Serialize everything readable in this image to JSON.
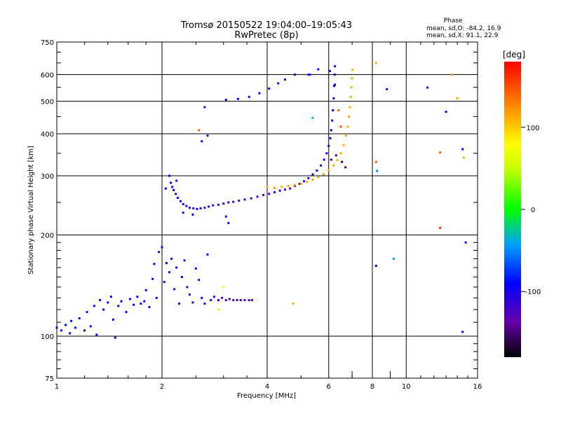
{
  "chart_data": {
    "type": "scatter",
    "title": "Tromsø 20150522 19:04:00–19:05:43",
    "subtitle": "RwPretec (8p)",
    "xlabel": "Frequency [MHz]",
    "ylabel": "Stationary phase Virtual Height [km]",
    "x_scale": "log",
    "y_scale": "log",
    "xlim": [
      1,
      16
    ],
    "ylim": [
      75,
      750
    ],
    "x_ticks": [
      1,
      2,
      4,
      6,
      8,
      10,
      16
    ],
    "x_tick_labels": [
      "1",
      "2",
      "4",
      "6",
      "8",
      "10",
      "16"
    ],
    "y_ticks": [
      75,
      100,
      200,
      300,
      400,
      500,
      600,
      750
    ],
    "y_tick_labels": [
      "75",
      "100",
      "200",
      "300",
      "400",
      "500",
      "600",
      "750"
    ],
    "grid": true,
    "phase_info": {
      "title": "Phase",
      "line1": "mean, sd,O: -84.2, 16.9",
      "line2": "mean, sd,X:  91.1, 22.9"
    },
    "colorbar": {
      "label": "[deg]",
      "range": [
        -180,
        180
      ],
      "ticks": [
        100,
        0,
        -100
      ],
      "tick_labels": [
        "100",
        "0",
        "-100"
      ]
    },
    "series": [
      {
        "points": [
          [
            1.0,
            106,
            -100
          ],
          [
            1.03,
            104,
            -95
          ],
          [
            1.06,
            108,
            -90
          ],
          [
            1.09,
            102,
            -100
          ],
          [
            1.1,
            111,
            -90
          ],
          [
            1.13,
            106,
            -95
          ],
          [
            1.16,
            113,
            -90
          ],
          [
            1.2,
            104,
            -100
          ],
          [
            1.22,
            118,
            -85
          ],
          [
            1.25,
            107,
            -95
          ],
          [
            1.28,
            123,
            -90
          ],
          [
            1.3,
            101,
            -100
          ],
          [
            1.33,
            128,
            -90
          ],
          [
            1.36,
            120,
            -95
          ],
          [
            1.4,
            126,
            -95
          ],
          [
            1.43,
            131,
            -90
          ],
          [
            1.45,
            112,
            -95
          ],
          [
            1.47,
            99,
            -105
          ],
          [
            1.5,
            123,
            -95
          ],
          [
            1.53,
            127,
            -90
          ],
          [
            1.58,
            118,
            -95
          ],
          [
            1.62,
            129,
            -90
          ],
          [
            1.66,
            124,
            -95
          ],
          [
            1.7,
            131,
            -90
          ],
          [
            1.74,
            125,
            -95
          ],
          [
            1.78,
            127,
            -90
          ],
          [
            1.8,
            137,
            -100
          ],
          [
            1.84,
            122,
            -95
          ],
          [
            1.88,
            148,
            -95
          ],
          [
            1.9,
            164,
            -95
          ],
          [
            1.93,
            130,
            -90
          ],
          [
            1.96,
            178,
            -100
          ],
          [
            2.0,
            184,
            -95
          ],
          [
            2.03,
            145,
            -100
          ],
          [
            2.06,
            165,
            -90
          ],
          [
            2.1,
            155,
            -100
          ],
          [
            2.13,
            170,
            -95
          ],
          [
            2.17,
            138,
            -100
          ],
          [
            2.2,
            160,
            -95
          ],
          [
            2.24,
            125,
            -105
          ],
          [
            2.28,
            150,
            -100
          ],
          [
            2.32,
            168,
            -95
          ],
          [
            2.36,
            140,
            -105
          ],
          [
            2.4,
            133,
            -100
          ],
          [
            2.45,
            126,
            -100
          ],
          [
            2.5,
            159,
            -95
          ],
          [
            2.55,
            147,
            -100
          ],
          [
            2.6,
            130,
            -105
          ],
          [
            2.65,
            125,
            -100
          ],
          [
            2.7,
            175,
            -95
          ],
          [
            2.76,
            128,
            -110
          ],
          [
            2.82,
            131,
            -115
          ],
          [
            2.9,
            128,
            -120
          ],
          [
            2.97,
            130,
            -125
          ],
          [
            3.05,
            128,
            -125
          ],
          [
            3.12,
            129,
            -120
          ],
          [
            3.2,
            128,
            -125
          ],
          [
            3.28,
            128,
            -120
          ],
          [
            3.36,
            128,
            -125
          ],
          [
            3.45,
            128,
            -125
          ],
          [
            3.55,
            128,
            -120
          ],
          [
            3.62,
            128,
            -125
          ]
        ]
      },
      {
        "points": [
          [
            2.12,
            286,
            -90
          ],
          [
            2.14,
            278,
            -95
          ],
          [
            2.16,
            272,
            -95
          ],
          [
            2.19,
            265,
            -100
          ],
          [
            2.22,
            258,
            -95
          ],
          [
            2.26,
            252,
            -100
          ],
          [
            2.3,
            247,
            -100
          ],
          [
            2.35,
            244,
            -105
          ],
          [
            2.4,
            241,
            -105
          ],
          [
            2.46,
            240,
            -110
          ],
          [
            2.52,
            239,
            -110
          ],
          [
            2.58,
            240,
            -110
          ],
          [
            2.65,
            241,
            -110
          ],
          [
            2.72,
            243,
            -110
          ],
          [
            2.8,
            245,
            -110
          ],
          [
            2.9,
            246,
            -115
          ],
          [
            3.0,
            248,
            -115
          ],
          [
            3.1,
            250,
            -115
          ],
          [
            3.2,
            251,
            -115
          ],
          [
            3.32,
            253,
            -120
          ],
          [
            3.45,
            255,
            -120
          ],
          [
            3.6,
            257,
            -120
          ],
          [
            3.75,
            260,
            -125
          ],
          [
            3.9,
            263,
            -125
          ],
          [
            4.05,
            265,
            -125
          ],
          [
            4.2,
            268,
            -120
          ],
          [
            4.35,
            271,
            -120
          ],
          [
            4.5,
            273,
            -115
          ],
          [
            4.65,
            275,
            -120
          ],
          [
            4.8,
            280,
            -115
          ],
          [
            4.95,
            284,
            -115
          ],
          [
            5.1,
            289,
            -110
          ],
          [
            5.25,
            295,
            -110
          ],
          [
            5.4,
            303,
            -110
          ],
          [
            5.55,
            311,
            -105
          ],
          [
            5.7,
            322,
            -105
          ],
          [
            5.82,
            335,
            -100
          ],
          [
            5.92,
            350,
            -100
          ],
          [
            6.0,
            368,
            -100
          ],
          [
            6.06,
            388,
            -95
          ],
          [
            6.1,
            410,
            -100
          ],
          [
            6.14,
            438,
            -95
          ],
          [
            6.17,
            470,
            -95
          ],
          [
            6.2,
            510,
            -90
          ],
          [
            6.22,
            555,
            -95
          ],
          [
            6.24,
            600,
            -90
          ],
          [
            6.25,
            635,
            -95
          ],
          [
            2.1,
            300,
            -90
          ],
          [
            2.2,
            290,
            -85
          ],
          [
            2.05,
            275,
            -90
          ],
          [
            2.3,
            233,
            -110
          ],
          [
            2.45,
            230,
            -105
          ]
        ]
      },
      {
        "points": [
          [
            3.05,
            505,
            -105
          ],
          [
            3.3,
            508,
            -100
          ],
          [
            3.55,
            515,
            -105
          ],
          [
            3.8,
            528,
            -100
          ],
          [
            4.05,
            545,
            -100
          ],
          [
            4.3,
            565,
            -95
          ],
          [
            4.5,
            580,
            -100
          ],
          [
            5.3,
            600,
            -100
          ],
          [
            5.6,
            622,
            -95
          ],
          [
            6.05,
            615,
            -100
          ],
          [
            6.25,
            560,
            -95
          ]
        ]
      },
      {
        "points": [
          [
            4.0,
            278,
            110
          ],
          [
            4.2,
            276,
            115
          ],
          [
            4.4,
            278,
            110
          ],
          [
            4.6,
            280,
            115
          ],
          [
            4.8,
            282,
            110
          ],
          [
            5.0,
            284,
            115
          ],
          [
            5.2,
            288,
            110
          ],
          [
            5.4,
            292,
            115
          ],
          [
            5.6,
            297,
            110
          ],
          [
            5.8,
            303,
            115
          ],
          [
            6.0,
            312,
            110
          ],
          [
            6.2,
            322,
            115
          ],
          [
            6.35,
            334,
            110
          ],
          [
            6.5,
            350,
            115
          ],
          [
            6.62,
            370,
            110
          ],
          [
            6.72,
            395,
            115
          ],
          [
            6.8,
            420,
            110
          ],
          [
            6.86,
            450,
            115
          ],
          [
            6.9,
            480,
            110
          ],
          [
            6.94,
            515,
            115
          ],
          [
            6.97,
            550,
            110
          ],
          [
            7.0,
            585,
            115
          ],
          [
            7.02,
            620,
            110
          ],
          [
            6.4,
            470,
            140
          ],
          [
            6.5,
            420,
            150
          ],
          [
            6.1,
            335,
            -155
          ],
          [
            6.3,
            345,
            -150
          ],
          [
            6.55,
            330,
            -155
          ],
          [
            6.7,
            318,
            -150
          ]
        ]
      },
      {
        "points": [
          [
            4.8,
            600,
            -100
          ],
          [
            8.2,
            650,
            110
          ],
          [
            8.8,
            543,
            -100
          ],
          [
            8.2,
            330,
            140
          ],
          [
            8.25,
            310,
            -50
          ],
          [
            9.2,
            170,
            -40
          ],
          [
            8.2,
            162,
            -85
          ],
          [
            11.5,
            549,
            -100
          ],
          [
            12.5,
            352,
            140
          ],
          [
            12.5,
            210,
            160
          ],
          [
            13.0,
            465,
            -90
          ],
          [
            13.5,
            600,
            110
          ],
          [
            14.0,
            510,
            115
          ],
          [
            14.5,
            360,
            -100
          ],
          [
            14.6,
            340,
            110
          ],
          [
            14.8,
            190,
            -110
          ],
          [
            14.5,
            103,
            -100
          ],
          [
            3.05,
            227,
            -100
          ],
          [
            3.1,
            217,
            -100
          ],
          [
            2.55,
            410,
            140
          ],
          [
            2.6,
            380,
            -100
          ],
          [
            2.7,
            395,
            -105
          ],
          [
            2.65,
            480,
            -100
          ],
          [
            5.4,
            446,
            -30
          ],
          [
            5.25,
            600,
            -80
          ],
          [
            4.75,
            125,
            110
          ],
          [
            2.9,
            120,
            60
          ],
          [
            3.0,
            140,
            80
          ]
        ]
      }
    ]
  }
}
